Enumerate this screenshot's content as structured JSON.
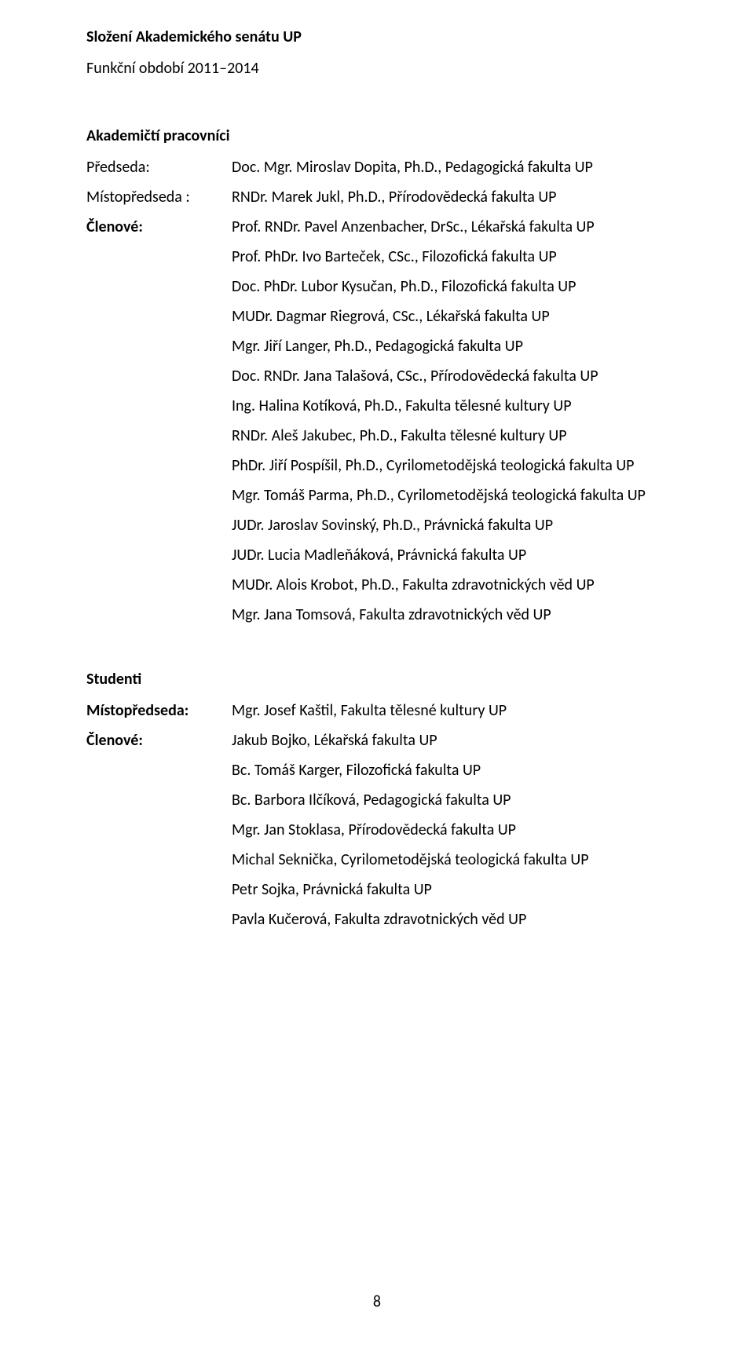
{
  "header": {
    "title": "Složení Akademického senátu UP",
    "subtitle": "Funkční období 2011–2014"
  },
  "staff": {
    "heading": "Akademičtí pracovníci",
    "chair_label": "Předseda:",
    "chair_value": "Doc. Mgr. Miroslav Dopita, Ph.D., Pedagogická fakulta UP",
    "vice_label": "Místopředseda :",
    "vice_value": "RNDr. Marek Jukl, Ph.D., Přírodovědecká fakulta UP",
    "members_label": "Členové:",
    "members_first": "Prof. RNDr. Pavel Anzenbacher, DrSc.,  Lékařská fakulta UP",
    "members": [
      "Prof. PhDr. Ivo Barteček, CSc., Filozofická fakulta UP",
      "Doc. PhDr. Lubor Kysučan, Ph.D., Filozofická fakulta UP",
      "MUDr. Dagmar Riegrová, CSc., Lékařská fakulta UP",
      "Mgr. Jiří Langer, Ph.D., Pedagogická fakulta UP",
      "Doc. RNDr. Jana Talašová, CSc., Přírodovědecká fakulta UP",
      "Ing. Halina Kotíková, Ph.D., Fakulta tělesné kultury UP",
      "RNDr. Aleš Jakubec, Ph.D., Fakulta tělesné kultury UP",
      "PhDr. Jiří Pospíšil, Ph.D., Cyrilometodějská teologická fakulta UP",
      "Mgr. Tomáš Parma, Ph.D., Cyrilometodějská teologická fakulta UP",
      "JUDr. Jaroslav Sovinský, Ph.D., Právnická fakulta UP",
      "JUDr. Lucia Madleňáková, Právnická fakulta UP",
      "MUDr. Alois Krobot, Ph.D., Fakulta zdravotnických věd UP",
      "Mgr. Jana Tomsová,  Fakulta zdravotnických věd UP"
    ]
  },
  "students": {
    "heading": "Studenti",
    "vice_label": "Místopředseda:",
    "vice_value": "Mgr. Josef Kaštil, Fakulta tělesné kultury UP",
    "members_label": "Členové:",
    "members_first": "Jakub Bojko, Lékařská fakulta UP",
    "members": [
      "Bc. Tomáš Karger, Filozofická fakulta UP",
      "Bc. Barbora Ilčíková, Pedagogická fakulta UP",
      "Mgr. Jan Stoklasa, Přírodovědecká fakulta UP",
      "Michal Seknička, Cyrilometodějská teologická fakulta UP",
      "Petr Sojka, Právnická fakulta UP",
      "Pavla Kučerová, Fakulta zdravotnických věd UP"
    ]
  },
  "page_number": "8"
}
